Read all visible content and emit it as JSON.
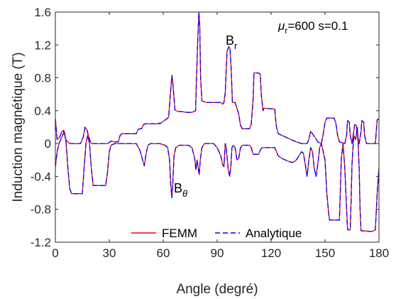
{
  "chart_data": {
    "type": "line",
    "xlabel": "Angle (degré)",
    "ylabel": "Induction magnétique (T)",
    "xlim": [
      0,
      180
    ],
    "ylim": [
      -1.2,
      1.6
    ],
    "xticks": [
      0,
      30,
      60,
      90,
      120,
      150,
      180
    ],
    "yticks": [
      -1.2,
      -0.8,
      -0.4,
      0,
      0.4,
      0.8,
      1.2,
      1.6
    ],
    "xtick_labels": [
      "0",
      "30",
      "60",
      "90",
      "120",
      "150",
      "180"
    ],
    "ytick_labels": [
      "-1.2",
      "-0.8",
      "-0.4",
      "0",
      "0.4",
      "0.8",
      "1.2",
      "1.6"
    ],
    "grid": false,
    "legend_position": "bottom-center",
    "annotation": {
      "mu": "μ",
      "mu_sub": "r",
      "rest": "=600 s=0.1"
    },
    "curve_labels": {
      "Br": {
        "main": "B",
        "sub": "r"
      },
      "Btheta": {
        "main": "B",
        "sub": "θ"
      }
    },
    "series": [
      {
        "name": "FEMM",
        "color": "#ff0000",
        "dash": "solid"
      },
      {
        "name": "Analytique",
        "color": "#0000ff",
        "dash": "dashed"
      }
    ],
    "curves": {
      "Br": [
        [
          0,
          0.3
        ],
        [
          1,
          0.05
        ],
        [
          2.5,
          0.08
        ],
        [
          3.5,
          0.14
        ],
        [
          4.5,
          0.16
        ],
        [
          6,
          0.04
        ],
        [
          8,
          0.0
        ],
        [
          14,
          0.0
        ],
        [
          15.5,
          0.08
        ],
        [
          16.5,
          0.2
        ],
        [
          17.5,
          0.17
        ],
        [
          19,
          0.05
        ],
        [
          20,
          0.0
        ],
        [
          29,
          0.0
        ],
        [
          31,
          0.03
        ],
        [
          33,
          0.02
        ],
        [
          35,
          0.02
        ],
        [
          36,
          0.1
        ],
        [
          37,
          0.12
        ],
        [
          45,
          0.12
        ],
        [
          46,
          0.17
        ],
        [
          47,
          0.18
        ],
        [
          48,
          0.18
        ],
        [
          49,
          0.23
        ],
        [
          50,
          0.24
        ],
        [
          57,
          0.24
        ],
        [
          57.5,
          0.25
        ],
        [
          58,
          0.24
        ],
        [
          62,
          0.3
        ],
        [
          63,
          0.32
        ],
        [
          64,
          0.6
        ],
        [
          64.8,
          0.83
        ],
        [
          65.3,
          0.75
        ],
        [
          66.5,
          0.41
        ],
        [
          68,
          0.39
        ],
        [
          70,
          0.39
        ],
        [
          73,
          0.38
        ],
        [
          76,
          0.38
        ],
        [
          78,
          0.4
        ],
        [
          78.5,
          0.8
        ],
        [
          79.2,
          1.25
        ],
        [
          79.8,
          1.6
        ],
        [
          80.3,
          1.45
        ],
        [
          80.8,
          0.8
        ],
        [
          81.5,
          0.52
        ],
        [
          84,
          0.5
        ],
        [
          92,
          0.5
        ],
        [
          93,
          0.48
        ],
        [
          93.8,
          0.5
        ],
        [
          94.5,
          0.62
        ],
        [
          95.5,
          1.12
        ],
        [
          96.5,
          1.18
        ],
        [
          97.2,
          1.15
        ],
        [
          97.8,
          0.9
        ],
        [
          98.5,
          0.5
        ],
        [
          100,
          0.5
        ],
        [
          102,
          0.36
        ],
        [
          103,
          0.22
        ],
        [
          104,
          0.18
        ],
        [
          108,
          0.18
        ],
        [
          109,
          0.24
        ],
        [
          110,
          0.55
        ],
        [
          110.5,
          0.86
        ],
        [
          113,
          0.86
        ],
        [
          114,
          0.84
        ],
        [
          114.5,
          0.6
        ],
        [
          115.5,
          0.4
        ],
        [
          116,
          0.43
        ],
        [
          122,
          0.42
        ],
        [
          122.5,
          0.3
        ],
        [
          123,
          0.2
        ],
        [
          124,
          0.12
        ],
        [
          126,
          0.1
        ],
        [
          130,
          0.06
        ],
        [
          134,
          0.02
        ],
        [
          137,
          0.0
        ],
        [
          140,
          0.0
        ],
        [
          141,
          0.05
        ],
        [
          142,
          0.15
        ],
        [
          143,
          0.12
        ],
        [
          146,
          0.02
        ],
        [
          148,
          0.0
        ],
        [
          149,
          0.12
        ],
        [
          150,
          0.26
        ],
        [
          151,
          0.31
        ],
        [
          155,
          0.31
        ],
        [
          156,
          0.25
        ],
        [
          157,
          0.1
        ],
        [
          158,
          0.02
        ],
        [
          161,
          0.0
        ],
        [
          162,
          0.1
        ],
        [
          162.5,
          0.28
        ],
        [
          163.5,
          0.26
        ],
        [
          164,
          0.1
        ],
        [
          165,
          0.0
        ],
        [
          166,
          0.15
        ],
        [
          166.5,
          0.23
        ],
        [
          167.5,
          0.22
        ],
        [
          168,
          0.1
        ],
        [
          169,
          0.0
        ],
        [
          170,
          0.15
        ],
        [
          170.5,
          0.28
        ],
        [
          171.5,
          0.26
        ],
        [
          172,
          0.1
        ],
        [
          173,
          0.0
        ],
        [
          178,
          0.0
        ],
        [
          178.5,
          0.15
        ],
        [
          179,
          0.29
        ],
        [
          180,
          0.3
        ]
      ],
      "Btheta": [
        [
          0,
          -0.28
        ],
        [
          1,
          -0.1
        ],
        [
          2,
          0.0
        ],
        [
          4,
          0.1
        ],
        [
          5,
          0.15
        ],
        [
          6,
          0.0
        ],
        [
          7,
          -0.3
        ],
        [
          8,
          -0.55
        ],
        [
          9,
          -0.61
        ],
        [
          15,
          -0.61
        ],
        [
          16,
          -0.3
        ],
        [
          17,
          0.0
        ],
        [
          18,
          0.1
        ],
        [
          19,
          0.0
        ],
        [
          20,
          -0.3
        ],
        [
          21,
          -0.51
        ],
        [
          28,
          -0.51
        ],
        [
          29,
          -0.35
        ],
        [
          30,
          -0.1
        ],
        [
          31,
          -0.02
        ],
        [
          33,
          0.0
        ],
        [
          45,
          0.0
        ],
        [
          47,
          -0.08
        ],
        [
          48.5,
          -0.2
        ],
        [
          49.5,
          -0.27
        ],
        [
          50.5,
          -0.12
        ],
        [
          51.5,
          -0.02
        ],
        [
          53,
          0.0
        ],
        [
          58,
          0.0
        ],
        [
          61,
          -0.02
        ],
        [
          62.5,
          -0.05
        ],
        [
          63.5,
          -0.2
        ],
        [
          64.2,
          -0.5
        ],
        [
          64.8,
          -0.66
        ],
        [
          65.3,
          -0.5
        ],
        [
          66,
          -0.15
        ],
        [
          67,
          -0.05
        ],
        [
          69,
          -0.02
        ],
        [
          74,
          -0.02
        ],
        [
          76,
          -0.05
        ],
        [
          77.5,
          -0.18
        ],
        [
          78.2,
          -0.32
        ],
        [
          78.8,
          -0.2
        ],
        [
          79.5,
          -0.3
        ],
        [
          80,
          -0.38
        ],
        [
          80.6,
          -0.2
        ],
        [
          81.5,
          -0.05
        ],
        [
          83,
          0.0
        ],
        [
          88,
          0.0
        ],
        [
          90,
          -0.05
        ],
        [
          92,
          -0.15
        ],
        [
          93,
          -0.25
        ],
        [
          93.8,
          -0.28
        ],
        [
          94.5,
          0.0
        ],
        [
          95,
          -0.05
        ],
        [
          96.2,
          -0.32
        ],
        [
          97,
          -0.4
        ],
        [
          97.6,
          -0.28
        ],
        [
          98.2,
          -0.05
        ],
        [
          99,
          -0.02
        ],
        [
          100,
          -0.05
        ],
        [
          101,
          -0.2
        ],
        [
          102,
          -0.18
        ],
        [
          103,
          -0.05
        ],
        [
          104,
          -0.02
        ],
        [
          108,
          -0.02
        ],
        [
          109,
          -0.05
        ],
        [
          110,
          -0.13
        ],
        [
          113,
          -0.13
        ],
        [
          114,
          -0.08
        ],
        [
          115,
          -0.05
        ],
        [
          122,
          -0.05
        ],
        [
          123,
          -0.1
        ],
        [
          124,
          -0.15
        ],
        [
          126,
          -0.18
        ],
        [
          128,
          -0.2
        ],
        [
          130,
          -0.22
        ],
        [
          132,
          -0.23
        ],
        [
          134,
          -0.2
        ],
        [
          136,
          -0.13
        ],
        [
          137,
          -0.1
        ],
        [
          138,
          -0.12
        ],
        [
          139,
          -0.25
        ],
        [
          140,
          -0.4
        ],
        [
          141,
          -0.2
        ],
        [
          142,
          -0.05
        ],
        [
          143,
          -0.1
        ],
        [
          144,
          -0.3
        ],
        [
          145,
          -0.4
        ],
        [
          146,
          -0.25
        ],
        [
          147,
          -0.05
        ],
        [
          148,
          0.0
        ],
        [
          150,
          -0.2
        ],
        [
          151,
          -0.6
        ],
        [
          152,
          -0.85
        ],
        [
          152.5,
          -0.93
        ],
        [
          158,
          -0.93
        ],
        [
          158.5,
          -0.6
        ],
        [
          159,
          -0.2
        ],
        [
          160,
          0.0
        ],
        [
          161,
          -0.3
        ],
        [
          162,
          -0.8
        ],
        [
          162.5,
          -1.05
        ],
        [
          164,
          -1.05
        ],
        [
          164.5,
          -0.7
        ],
        [
          165,
          -0.25
        ],
        [
          166,
          0.1
        ],
        [
          167,
          0.05
        ],
        [
          168,
          0.2
        ],
        [
          169,
          -0.3
        ],
        [
          169.5,
          -0.8
        ],
        [
          170,
          -1.06
        ],
        [
          176,
          -1.07
        ],
        [
          178,
          -1.05
        ],
        [
          179,
          -0.6
        ],
        [
          180,
          -0.3
        ]
      ]
    }
  }
}
